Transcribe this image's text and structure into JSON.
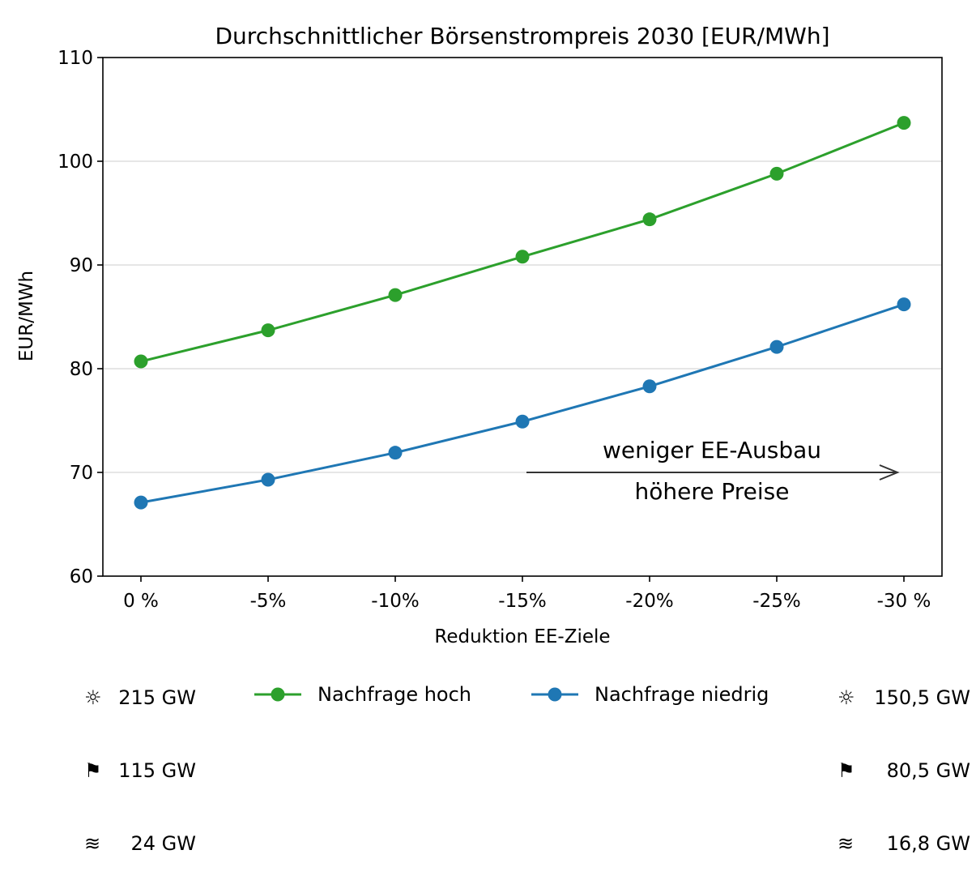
{
  "chart_data": {
    "type": "line",
    "title": "Durchschnittlicher Börsenstrompreis 2030 [EUR/MWh]",
    "xlabel": "Reduktion EE-Ziele",
    "ylabel": "EUR/MWh",
    "categories": [
      "0 %",
      "-5%",
      "-10%",
      "-15%",
      "-20%",
      "-25%",
      "-30 %"
    ],
    "ylim": [
      60,
      110
    ],
    "yticks": [
      60,
      70,
      80,
      90,
      100,
      110
    ],
    "grid": "horizontal",
    "legend": "bottom-center",
    "series": [
      {
        "name": "Nachfrage hoch",
        "color": "#2ca02c",
        "values": [
          80.7,
          83.7,
          87.1,
          90.8,
          94.4,
          98.8,
          103.7
        ]
      },
      {
        "name": "Nachfrage niedrig",
        "color": "#1f77b4",
        "values": [
          67.1,
          69.3,
          71.9,
          74.9,
          78.3,
          82.1,
          86.2
        ]
      }
    ],
    "annotation": {
      "text_above": "weniger EE-Ausbau",
      "text_below": "höhere Preise",
      "arrow_y": 70,
      "arrow_from_category": 3,
      "arrow_to_category": 6,
      "color": "#333333"
    }
  },
  "left_info": [
    {
      "symbol": "☼",
      "value": "215 GW"
    },
    {
      "symbol": "⚑",
      "value": "115 GW"
    },
    {
      "symbol": "≋",
      "value": "24 GW"
    }
  ],
  "right_info": [
    {
      "symbol": "☼",
      "value": "150,5 GW"
    },
    {
      "symbol": "⚑",
      "value": "80,5 GW"
    },
    {
      "symbol": "≋",
      "value": "16,8 GW"
    }
  ]
}
